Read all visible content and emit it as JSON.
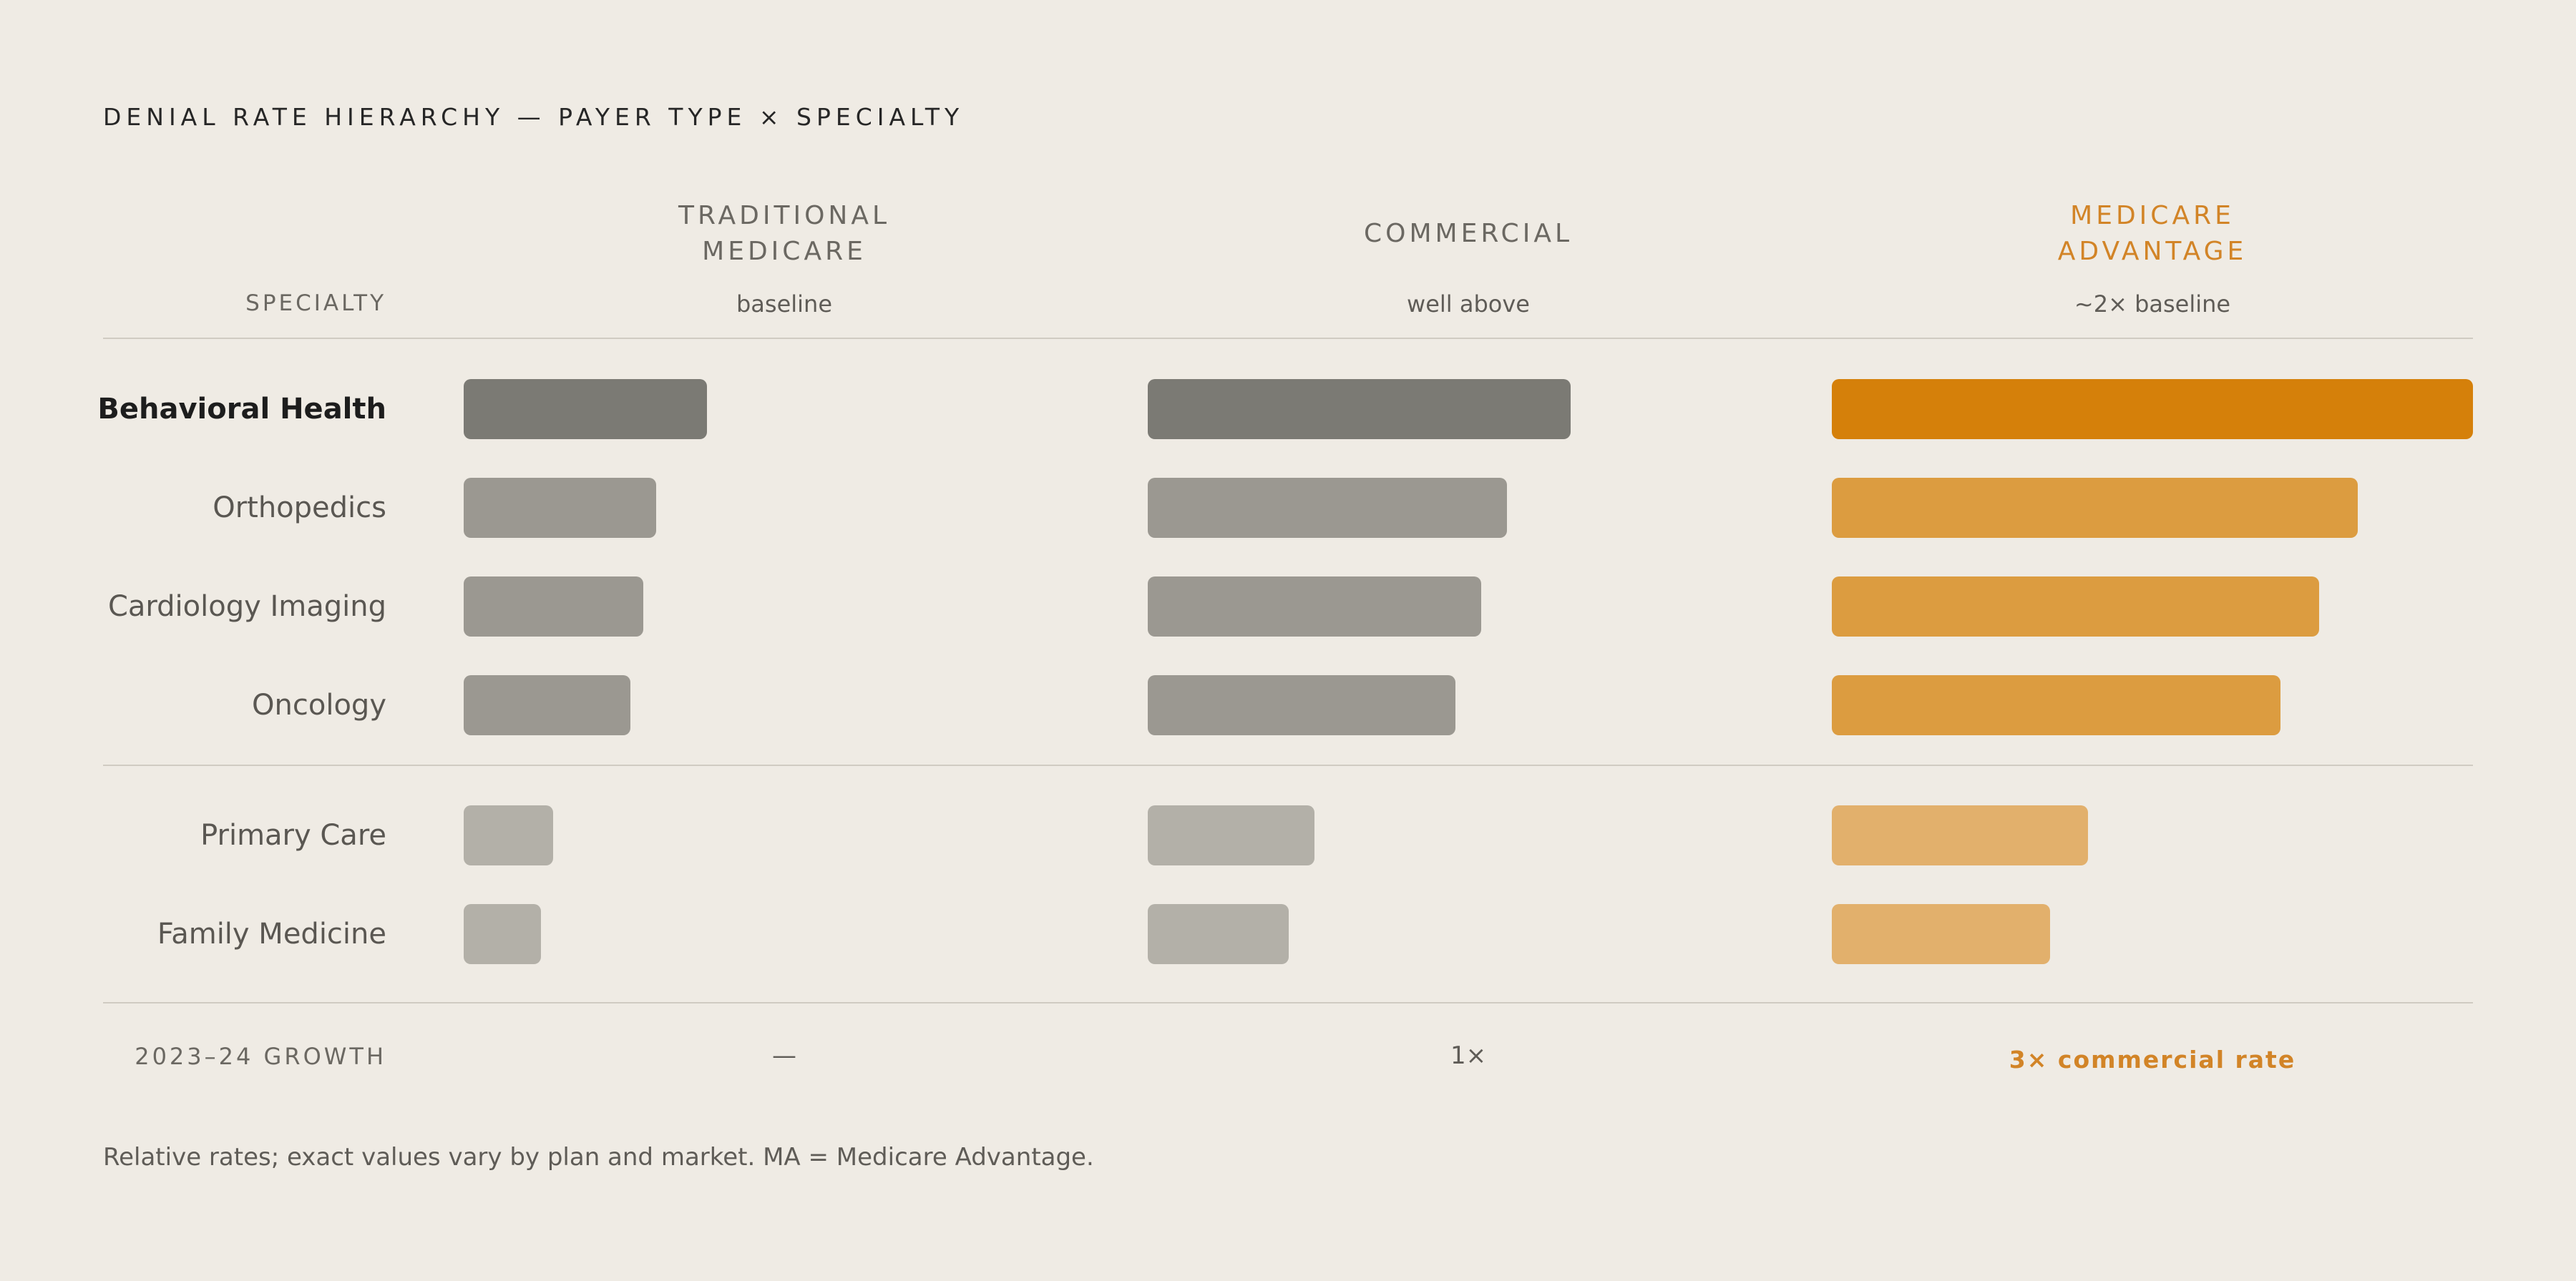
{
  "title": "DENIAL RATE HIERARCHY — PAYER TYPE × SPECIALTY",
  "specialty_header": "SPECIALTY",
  "columns": [
    {
      "name_lines": [
        "TRADITIONAL",
        "MEDICARE"
      ],
      "subtitle": "baseline",
      "growth": "—",
      "accent": false
    },
    {
      "name_lines": [
        "COMMERCIAL"
      ],
      "subtitle": "well above",
      "growth": "1×",
      "accent": false
    },
    {
      "name_lines": [
        "MEDICARE",
        "ADVANTAGE"
      ],
      "subtitle": "~2× baseline",
      "growth": "3× commercial rate",
      "accent": true
    }
  ],
  "growth_label": "2023–24 GROWTH",
  "footnote": "Relative rates; exact values vary by plan and market. MA = Medicare Advantage.",
  "colors": {
    "neutral_dark": "#7b7a74",
    "neutral_mid": "#9b9891",
    "neutral_light": "#b3b0a8",
    "ma_dark": "#d5800a",
    "ma_mid": "#dc9c40",
    "ma_light": "#e2b06c"
  },
  "chart_data": {
    "type": "bar",
    "orientation": "horizontal",
    "categories": [
      "Behavioral Health",
      "Orthopedics",
      "Cardiology Imaging",
      "Oncology",
      "Primary Care",
      "Family Medicine"
    ],
    "category_groups": [
      {
        "categories": [
          "Behavioral Health",
          "Orthopedics",
          "Cardiology Imaging",
          "Oncology"
        ]
      },
      {
        "categories": [
          "Primary Care",
          "Family Medicine"
        ]
      }
    ],
    "series": [
      {
        "name": "TRADITIONAL MEDICARE",
        "values": [
          38,
          30,
          28,
          26,
          14,
          12
        ]
      },
      {
        "name": "COMMERCIAL",
        "values": [
          66,
          56,
          52,
          48,
          26,
          22
        ]
      },
      {
        "name": "MEDICARE ADVANTAGE",
        "values": [
          100,
          82,
          76,
          70,
          40,
          34
        ]
      }
    ],
    "xlim": [
      0,
      100
    ],
    "grid": false,
    "highlight_category": "Behavioral Health",
    "highlight_series": "MEDICARE ADVANTAGE"
  }
}
